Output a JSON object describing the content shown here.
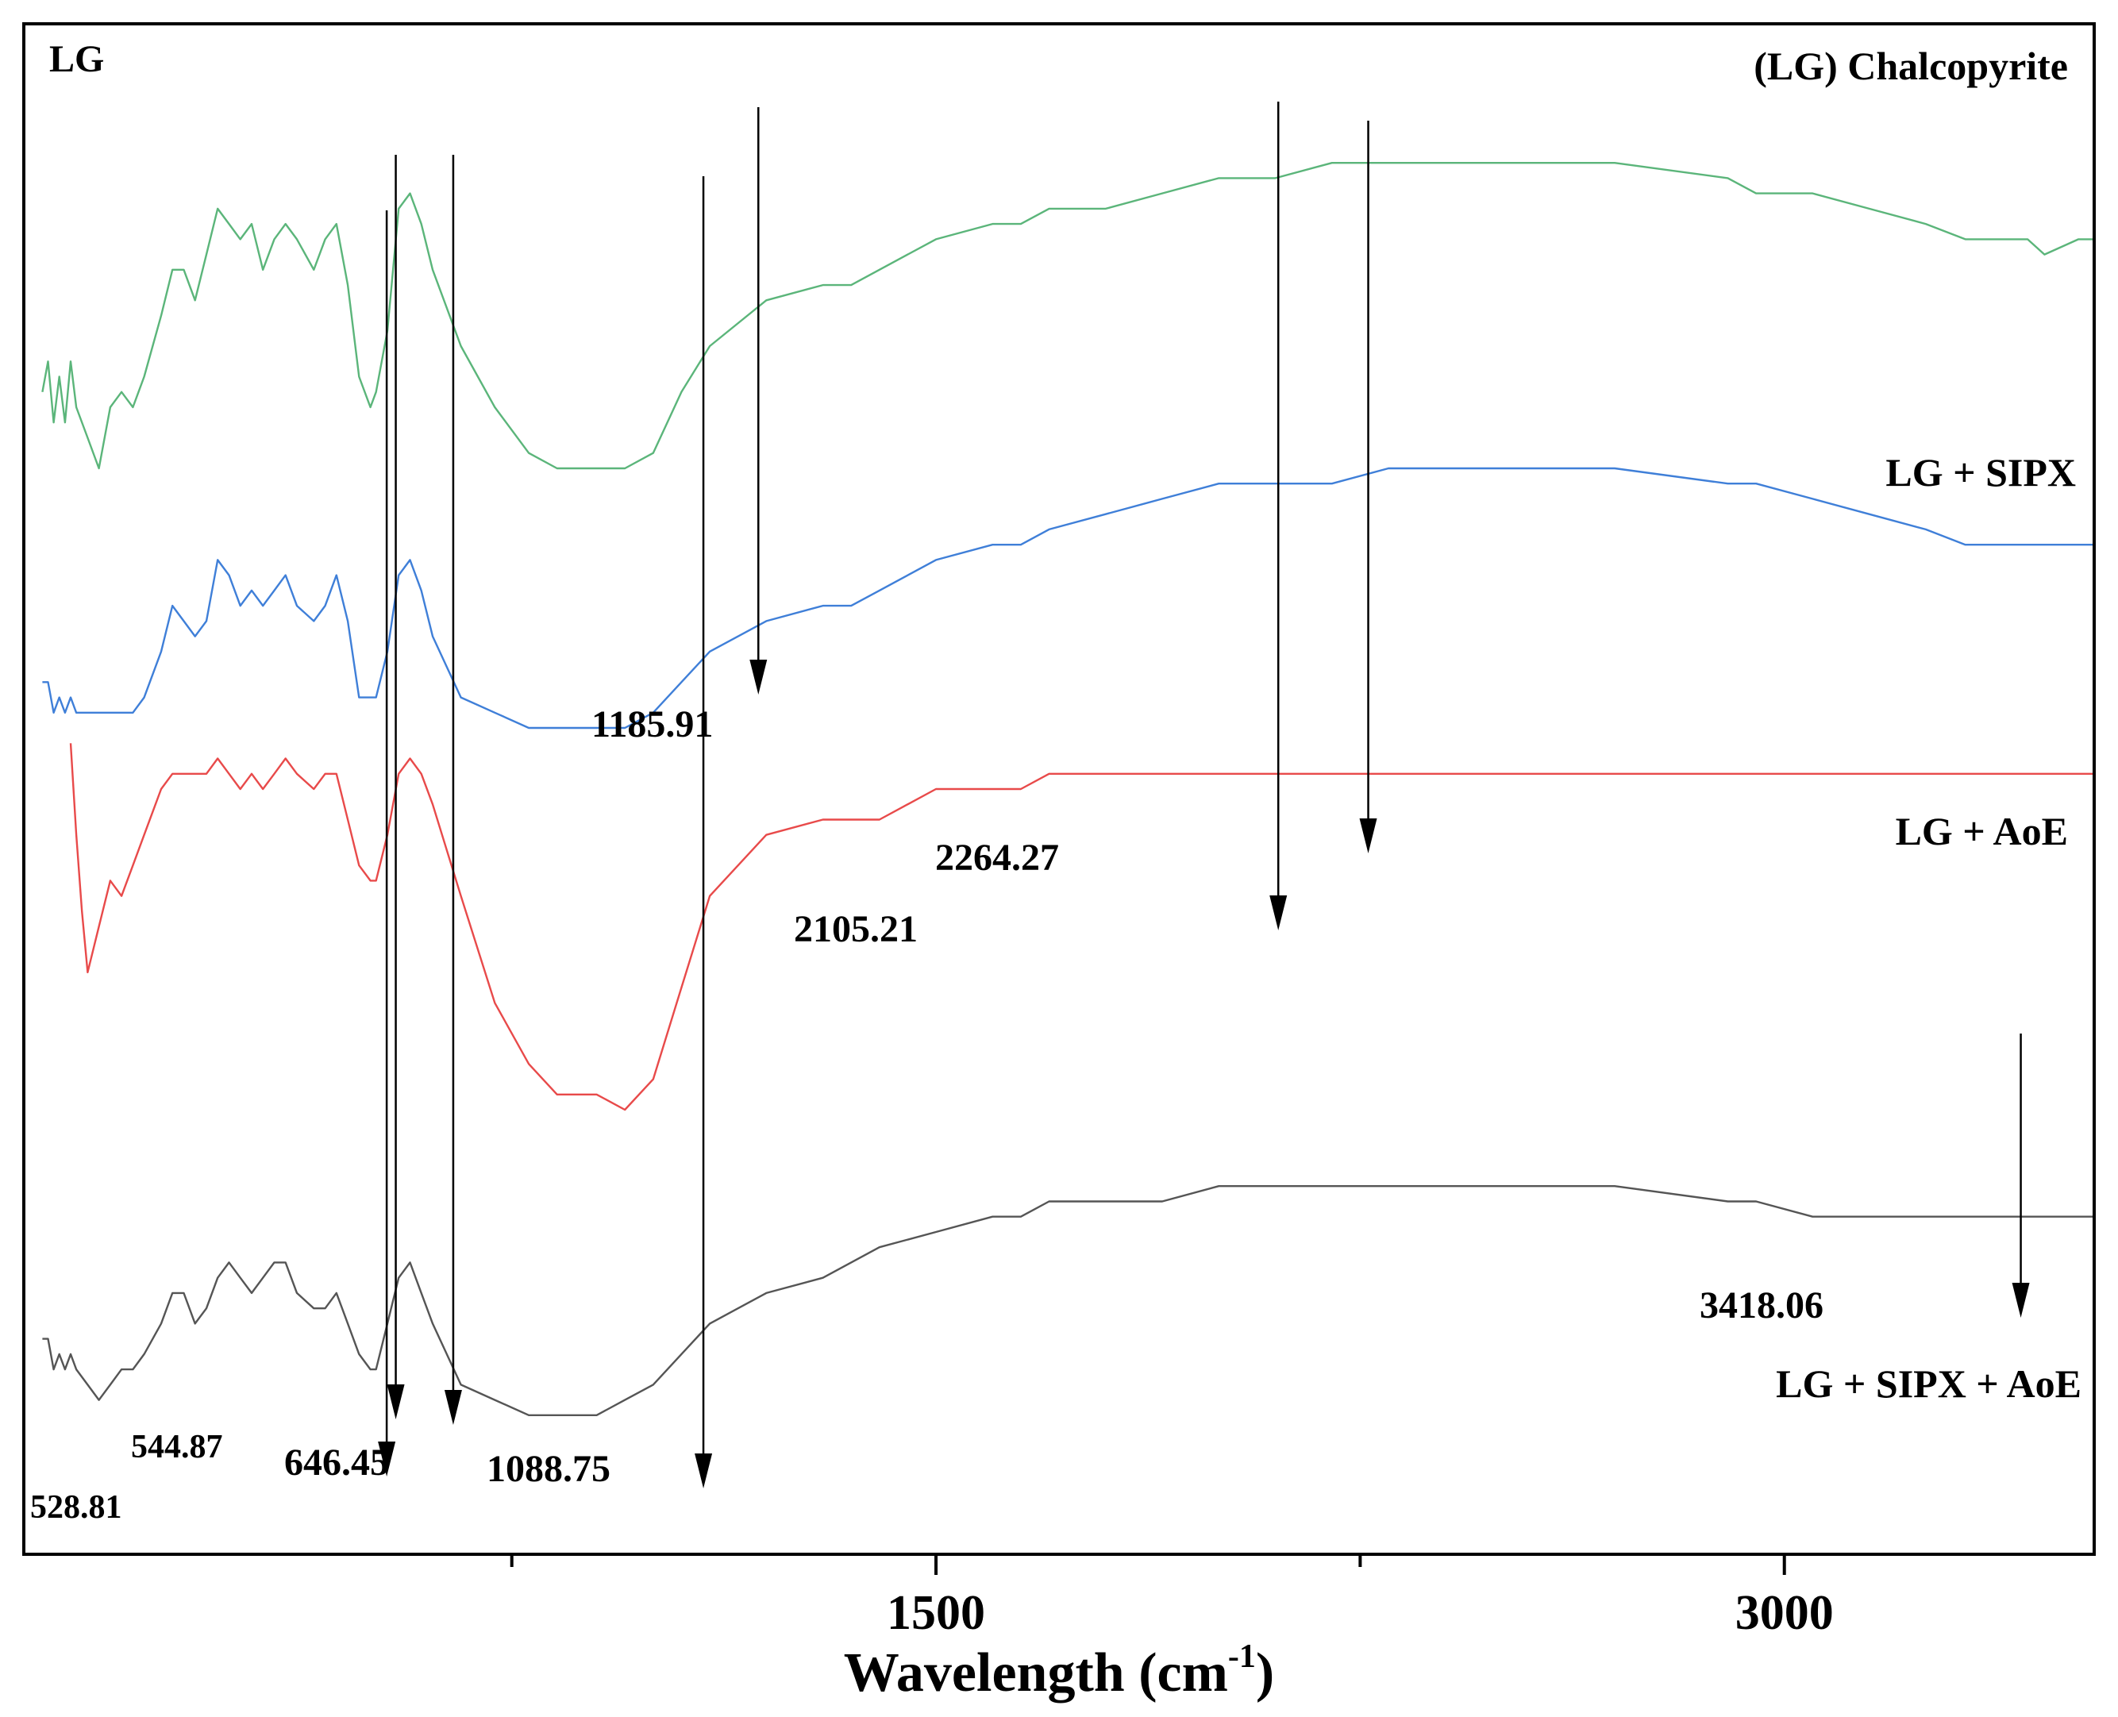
{
  "chart_data": {
    "type": "line",
    "title": "LG",
    "xlabel": "Wavelength (cm",
    "xlabel_sup": "-1",
    "xlabel_close": ")",
    "ylabel": "",
    "xlim": [
      -110,
      3545
    ],
    "ylim": [
      0,
      100
    ],
    "x_ticks_major": [
      1500,
      3000
    ],
    "x_ticks_minor": [
      750,
      2250,
      3750
    ],
    "x_tick_labels": [
      "1500",
      "3000"
    ],
    "grid": false,
    "legend": "none",
    "series": [
      {
        "name": "(LG) Chalcopyrite",
        "color": "#5bb57a",
        "points": [
          [
            -80,
            76
          ],
          [
            -70,
            78
          ],
          [
            -60,
            74
          ],
          [
            -50,
            77
          ],
          [
            -40,
            74
          ],
          [
            -30,
            78
          ],
          [
            -20,
            75
          ],
          [
            0,
            73
          ],
          [
            20,
            71
          ],
          [
            40,
            75
          ],
          [
            60,
            76
          ],
          [
            80,
            75
          ],
          [
            100,
            77
          ],
          [
            130,
            81
          ],
          [
            150,
            84
          ],
          [
            170,
            84
          ],
          [
            190,
            82
          ],
          [
            210,
            85
          ],
          [
            230,
            88
          ],
          [
            250,
            87
          ],
          [
            270,
            86
          ],
          [
            290,
            87
          ],
          [
            310,
            84
          ],
          [
            330,
            86
          ],
          [
            350,
            87
          ],
          [
            370,
            86
          ],
          [
            400,
            84
          ],
          [
            420,
            86
          ],
          [
            440,
            87
          ],
          [
            460,
            83
          ],
          [
            480,
            77
          ],
          [
            500,
            75
          ],
          [
            510,
            76
          ],
          [
            530,
            80
          ],
          [
            550,
            88
          ],
          [
            570,
            89
          ],
          [
            590,
            87
          ],
          [
            610,
            84
          ],
          [
            660,
            79
          ],
          [
            720,
            75
          ],
          [
            780,
            72
          ],
          [
            830,
            71
          ],
          [
            900,
            71
          ],
          [
            950,
            71
          ],
          [
            1000,
            72
          ],
          [
            1050,
            76
          ],
          [
            1100,
            79
          ],
          [
            1200,
            82
          ],
          [
            1300,
            83
          ],
          [
            1350,
            83
          ],
          [
            1400,
            84
          ],
          [
            1500,
            86
          ],
          [
            1600,
            87
          ],
          [
            1650,
            87
          ],
          [
            1700,
            88
          ],
          [
            1800,
            88
          ],
          [
            1900,
            89
          ],
          [
            2000,
            90
          ],
          [
            2100,
            90
          ],
          [
            2200,
            91
          ],
          [
            2300,
            91
          ],
          [
            2500,
            91
          ],
          [
            2700,
            91
          ],
          [
            2900,
            90
          ],
          [
            2950,
            89
          ],
          [
            3050,
            89
          ],
          [
            3150,
            88
          ],
          [
            3250,
            87
          ],
          [
            3320,
            86
          ],
          [
            3380,
            86
          ],
          [
            3430,
            86
          ],
          [
            3460,
            85
          ],
          [
            3520,
            86
          ],
          [
            3545,
            86
          ]
        ]
      },
      {
        "name": "LG + SIPX",
        "color": "#3f7fd8",
        "points": [
          [
            -80,
            57
          ],
          [
            -70,
            57
          ],
          [
            -60,
            55
          ],
          [
            -50,
            56
          ],
          [
            -40,
            55
          ],
          [
            -30,
            56
          ],
          [
            -20,
            55
          ],
          [
            0,
            55
          ],
          [
            30,
            55
          ],
          [
            60,
            55
          ],
          [
            80,
            55
          ],
          [
            100,
            56
          ],
          [
            130,
            59
          ],
          [
            150,
            62
          ],
          [
            170,
            61
          ],
          [
            190,
            60
          ],
          [
            210,
            61
          ],
          [
            230,
            65
          ],
          [
            250,
            64
          ],
          [
            270,
            62
          ],
          [
            290,
            63
          ],
          [
            310,
            62
          ],
          [
            330,
            63
          ],
          [
            350,
            64
          ],
          [
            370,
            62
          ],
          [
            400,
            61
          ],
          [
            420,
            62
          ],
          [
            440,
            64
          ],
          [
            460,
            61
          ],
          [
            480,
            56
          ],
          [
            500,
            56
          ],
          [
            510,
            56
          ],
          [
            530,
            59
          ],
          [
            550,
            64
          ],
          [
            570,
            65
          ],
          [
            590,
            63
          ],
          [
            610,
            60
          ],
          [
            660,
            56
          ],
          [
            720,
            55
          ],
          [
            780,
            54
          ],
          [
            830,
            54
          ],
          [
            900,
            54
          ],
          [
            950,
            54
          ],
          [
            1000,
            55
          ],
          [
            1050,
            57
          ],
          [
            1100,
            59
          ],
          [
            1200,
            61
          ],
          [
            1300,
            62
          ],
          [
            1350,
            62
          ],
          [
            1400,
            63
          ],
          [
            1500,
            65
          ],
          [
            1600,
            66
          ],
          [
            1650,
            66
          ],
          [
            1700,
            67
          ],
          [
            1800,
            68
          ],
          [
            1900,
            69
          ],
          [
            2000,
            70
          ],
          [
            2100,
            70
          ],
          [
            2200,
            70
          ],
          [
            2300,
            71
          ],
          [
            2500,
            71
          ],
          [
            2700,
            71
          ],
          [
            2900,
            70
          ],
          [
            2950,
            70
          ],
          [
            3050,
            69
          ],
          [
            3150,
            68
          ],
          [
            3250,
            67
          ],
          [
            3320,
            66
          ],
          [
            3380,
            66
          ],
          [
            3430,
            66
          ],
          [
            3460,
            66
          ],
          [
            3520,
            66
          ],
          [
            3545,
            66
          ]
        ]
      },
      {
        "name": "LG + AoE",
        "color": "#e84a4a",
        "points": [
          [
            -30,
            53
          ],
          [
            -20,
            47
          ],
          [
            -10,
            42
          ],
          [
            0,
            38
          ],
          [
            20,
            41
          ],
          [
            40,
            44
          ],
          [
            60,
            43
          ],
          [
            80,
            45
          ],
          [
            100,
            47
          ],
          [
            130,
            50
          ],
          [
            150,
            51
          ],
          [
            170,
            51
          ],
          [
            190,
            51
          ],
          [
            210,
            51
          ],
          [
            230,
            52
          ],
          [
            250,
            51
          ],
          [
            270,
            50
          ],
          [
            290,
            51
          ],
          [
            310,
            50
          ],
          [
            330,
            51
          ],
          [
            350,
            52
          ],
          [
            370,
            51
          ],
          [
            400,
            50
          ],
          [
            420,
            51
          ],
          [
            440,
            51
          ],
          [
            460,
            48
          ],
          [
            480,
            45
          ],
          [
            500,
            44
          ],
          [
            510,
            44
          ],
          [
            530,
            47
          ],
          [
            550,
            51
          ],
          [
            570,
            52
          ],
          [
            590,
            51
          ],
          [
            610,
            49
          ],
          [
            660,
            43
          ],
          [
            720,
            36
          ],
          [
            780,
            32
          ],
          [
            830,
            30
          ],
          [
            900,
            30
          ],
          [
            950,
            29
          ],
          [
            1000,
            31
          ],
          [
            1050,
            37
          ],
          [
            1100,
            43
          ],
          [
            1200,
            47
          ],
          [
            1300,
            48
          ],
          [
            1350,
            48
          ],
          [
            1400,
            48
          ],
          [
            1500,
            50
          ],
          [
            1600,
            50
          ],
          [
            1650,
            50
          ],
          [
            1700,
            51
          ],
          [
            1800,
            51
          ],
          [
            1900,
            51
          ],
          [
            2000,
            51
          ],
          [
            2100,
            51
          ],
          [
            2200,
            51
          ],
          [
            2300,
            51
          ],
          [
            2500,
            51
          ],
          [
            2700,
            51
          ],
          [
            2900,
            51
          ],
          [
            2950,
            51
          ],
          [
            3050,
            51
          ],
          [
            3150,
            51
          ],
          [
            3250,
            51
          ],
          [
            3320,
            51
          ],
          [
            3380,
            51
          ],
          [
            3430,
            51
          ],
          [
            3460,
            51
          ],
          [
            3520,
            51
          ],
          [
            3545,
            51
          ]
        ]
      },
      {
        "name": "LG + SIPX + AoE",
        "color": "#555555",
        "points": [
          [
            -80,
            14
          ],
          [
            -70,
            14
          ],
          [
            -60,
            12
          ],
          [
            -50,
            13
          ],
          [
            -40,
            12
          ],
          [
            -30,
            13
          ],
          [
            -20,
            12
          ],
          [
            0,
            11
          ],
          [
            20,
            10
          ],
          [
            40,
            11
          ],
          [
            60,
            12
          ],
          [
            80,
            12
          ],
          [
            100,
            13
          ],
          [
            130,
            15
          ],
          [
            150,
            17
          ],
          [
            170,
            17
          ],
          [
            190,
            15
          ],
          [
            210,
            16
          ],
          [
            230,
            18
          ],
          [
            250,
            19
          ],
          [
            270,
            18
          ],
          [
            290,
            17
          ],
          [
            310,
            18
          ],
          [
            330,
            19
          ],
          [
            350,
            19
          ],
          [
            370,
            17
          ],
          [
            400,
            16
          ],
          [
            420,
            16
          ],
          [
            440,
            17
          ],
          [
            460,
            15
          ],
          [
            480,
            13
          ],
          [
            500,
            12
          ],
          [
            510,
            12
          ],
          [
            530,
            15
          ],
          [
            550,
            18
          ],
          [
            570,
            19
          ],
          [
            590,
            17
          ],
          [
            610,
            15
          ],
          [
            660,
            11
          ],
          [
            720,
            10
          ],
          [
            780,
            9
          ],
          [
            830,
            9
          ],
          [
            900,
            9
          ],
          [
            950,
            10
          ],
          [
            1000,
            11
          ],
          [
            1050,
            13
          ],
          [
            1100,
            15
          ],
          [
            1200,
            17
          ],
          [
            1300,
            18
          ],
          [
            1350,
            19
          ],
          [
            1400,
            20
          ],
          [
            1500,
            21
          ],
          [
            1600,
            22
          ],
          [
            1650,
            22
          ],
          [
            1700,
            23
          ],
          [
            1800,
            23
          ],
          [
            1900,
            23
          ],
          [
            2000,
            24
          ],
          [
            2100,
            24
          ],
          [
            2200,
            24
          ],
          [
            2300,
            24
          ],
          [
            2500,
            24
          ],
          [
            2700,
            24
          ],
          [
            2900,
            23
          ],
          [
            2950,
            23
          ],
          [
            3050,
            22
          ],
          [
            3150,
            22
          ],
          [
            3250,
            22
          ],
          [
            3320,
            22
          ],
          [
            3380,
            22
          ],
          [
            3430,
            22
          ],
          [
            3460,
            22
          ],
          [
            3520,
            22
          ],
          [
            3545,
            22
          ]
        ]
      }
    ],
    "series_labels": [
      {
        "text": "(LG) Chalcopyrite",
        "series": 0
      },
      {
        "text": "LG + SIPX",
        "series": 1
      },
      {
        "text": "LG + AoE",
        "series": 2
      },
      {
        "text": "LG + SIPX + AoE",
        "series": 3
      }
    ],
    "annotations": [
      {
        "label": "528.81",
        "x": 528.81
      },
      {
        "label": "544.87",
        "x": 544.87
      },
      {
        "label": "646.45",
        "x": 646.45
      },
      {
        "label": "1088.75",
        "x": 1088.75
      },
      {
        "label": "1185.91",
        "x": 1185.91
      },
      {
        "label": "2105.21",
        "x": 2105.21
      },
      {
        "label": "2264.27",
        "x": 2264.27
      },
      {
        "label": "3418.06",
        "x": 3418.06
      }
    ]
  }
}
